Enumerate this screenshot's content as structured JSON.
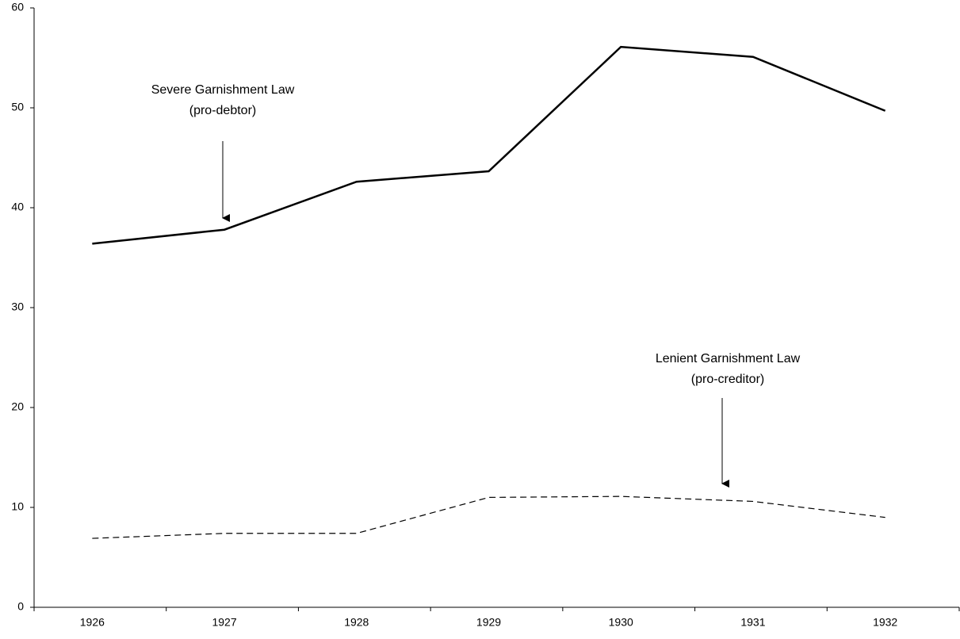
{
  "chart_data": {
    "type": "line",
    "categories": [
      "1926",
      "1927",
      "1928",
      "1929",
      "1930",
      "1931",
      "1932"
    ],
    "series": [
      {
        "color": "#000000",
        "dash": "solid",
        "values": [
          36.4,
          37.8,
          42.6,
          43.65,
          56.1,
          55.1,
          49.7
        ]
      },
      {
        "color": "#000000",
        "dash": "dashed",
        "values": [
          6.9,
          7.4,
          7.4,
          11.0,
          11.1,
          10.6,
          9.0
        ]
      }
    ],
    "ylim": [
      0,
      60
    ],
    "yticks": [
      0,
      10,
      20,
      30,
      40,
      50,
      60
    ],
    "grid": false,
    "annotations": [
      {
        "lines": [
          "Severe Garnishment Law",
          "(pro-debtor)"
        ]
      },
      {
        "lines": [
          "Lenient Garnishment Law",
          "(pro-creditor)"
        ]
      }
    ]
  }
}
